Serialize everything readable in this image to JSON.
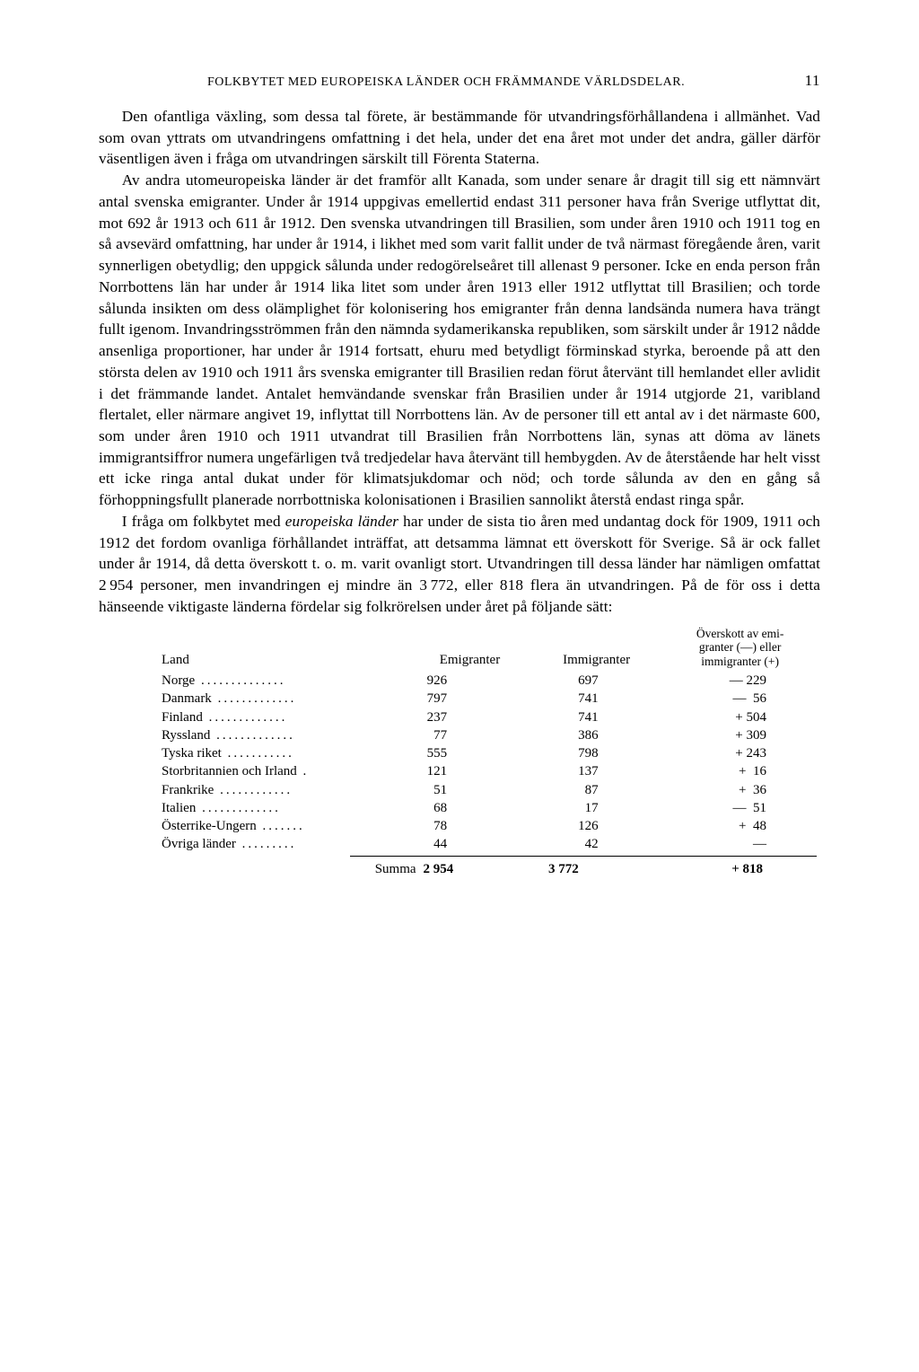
{
  "header": {
    "running_title": "FOLKBYTET MED EUROPEISKA LÄNDER OCH FRÄMMANDE VÄRLDSDELAR.",
    "page_number": "11"
  },
  "paragraphs": {
    "p1": "Den ofantliga växling, som dessa tal förete, är bestämmande för utvandringsförhållandena i allmänhet. Vad som ovan yttrats om utvandringens omfattning i det hela, under det ena året mot under det andra, gäller därför väsentligen även i fråga om utvandringen särskilt till Förenta Staterna.",
    "p2": "Av andra utomeuropeiska länder är det framför allt Kanada, som under senare år dragit till sig ett nämnvärt antal svenska emigranter. Under år 1914 uppgivas emellertid endast 311 personer hava från Sverige utflyttat dit, mot 692 år 1913 och 611 år 1912. Den svenska utvandringen till Brasilien, som under åren 1910 och 1911 tog en så avsevärd omfattning, har under år 1914, i likhet med som varit fallit under de två närmast föregående åren, varit synnerligen obetydlig; den uppgick sålunda under redogörelseåret till allenast 9 personer. Icke en enda person från Norrbottens län har under år 1914 lika litet som under åren 1913 eller 1912 utflyttat till Brasilien; och torde sålunda insikten om dess olämplighet för kolonisering hos emigranter från denna landsända numera hava trängt fullt igenom. Invandringsströmmen från den nämnda sydamerikanska republiken, som särskilt under år 1912 nådde ansenliga proportioner, har under år 1914 fortsatt, ehuru med betydligt förminskad styrka, beroende på att den största delen av 1910 och 1911 års svenska emigranter till Brasilien redan förut återvänt till hemlandet eller avlidit i det främmande landet. Antalet hemvändande svenskar från Brasilien under år 1914 utgjorde 21, varibland flertalet, eller närmare angivet 19, inflyttat till Norrbottens län. Av de personer till ett antal av i det närmaste 600, som under åren 1910 och 1911 utvandrat till Brasilien från Norrbottens län, synas att döma av länets immigrantsiffror numera ungefärligen två tredjedelar hava återvänt till hembygden. Av de återstående har helt visst ett icke ringa antal dukat under för klimatsjukdomar och nöd; och torde sålunda av den en gång så förhoppningsfullt planerade norrbottniska kolonisationen i Brasilien sannolikt återstå endast ringa spår.",
    "p3a": "I fråga om folkbytet med ",
    "p3_italic": "europeiska länder",
    "p3b": " har under de sista tio åren med undantag dock för 1909, 1911 och 1912 det fordom ovanliga förhållandet inträffat, att detsamma lämnat ett överskott för Sverige. Så är ock fallet under år 1914, då detta överskott t. o. m. varit ovanligt stort. Utvandringen till dessa länder har nämligen omfattat 2 954 personer, men invandringen ej mindre än 3 772, eller 818 flera än utvandringen. På de för oss i detta hänseende viktigaste länderna fördelar sig folkrörelsen under året på följande sätt:"
  },
  "table": {
    "headers": {
      "land": "Land",
      "emigranter": "Emigranter",
      "immigranter": "Immigranter",
      "overskott_l1": "Överskott av emi-",
      "overskott_l2": "granter (—) eller",
      "overskott_l3": "immigranter (+)"
    },
    "rows": [
      {
        "land": "Norge",
        "emi": "926",
        "immi": "697",
        "over": "— 229"
      },
      {
        "land": "Danmark",
        "emi": "797",
        "immi": "741",
        "over": "—  56"
      },
      {
        "land": "Finland",
        "emi": "237",
        "immi": "741",
        "over": "+ 504"
      },
      {
        "land": "Ryssland",
        "emi": "77",
        "immi": "386",
        "over": "+ 309"
      },
      {
        "land": "Tyska riket",
        "emi": "555",
        "immi": "798",
        "over": "+ 243"
      },
      {
        "land": "Storbritannien och Irland",
        "emi": "121",
        "immi": "137",
        "over": "+  16"
      },
      {
        "land": "Frankrike",
        "emi": "51",
        "immi": "87",
        "over": "+  36"
      },
      {
        "land": "Italien",
        "emi": "68",
        "immi": "17",
        "over": "—  51"
      },
      {
        "land": "Österrike-Ungern",
        "emi": "78",
        "immi": "126",
        "over": "+  48"
      },
      {
        "land": "Övriga länder",
        "emi": "44",
        "immi": "42",
        "over": "—"
      }
    ],
    "sum": {
      "label": "Summa",
      "emi": "2 954",
      "immi": "3 772",
      "over": "+ 818"
    }
  }
}
